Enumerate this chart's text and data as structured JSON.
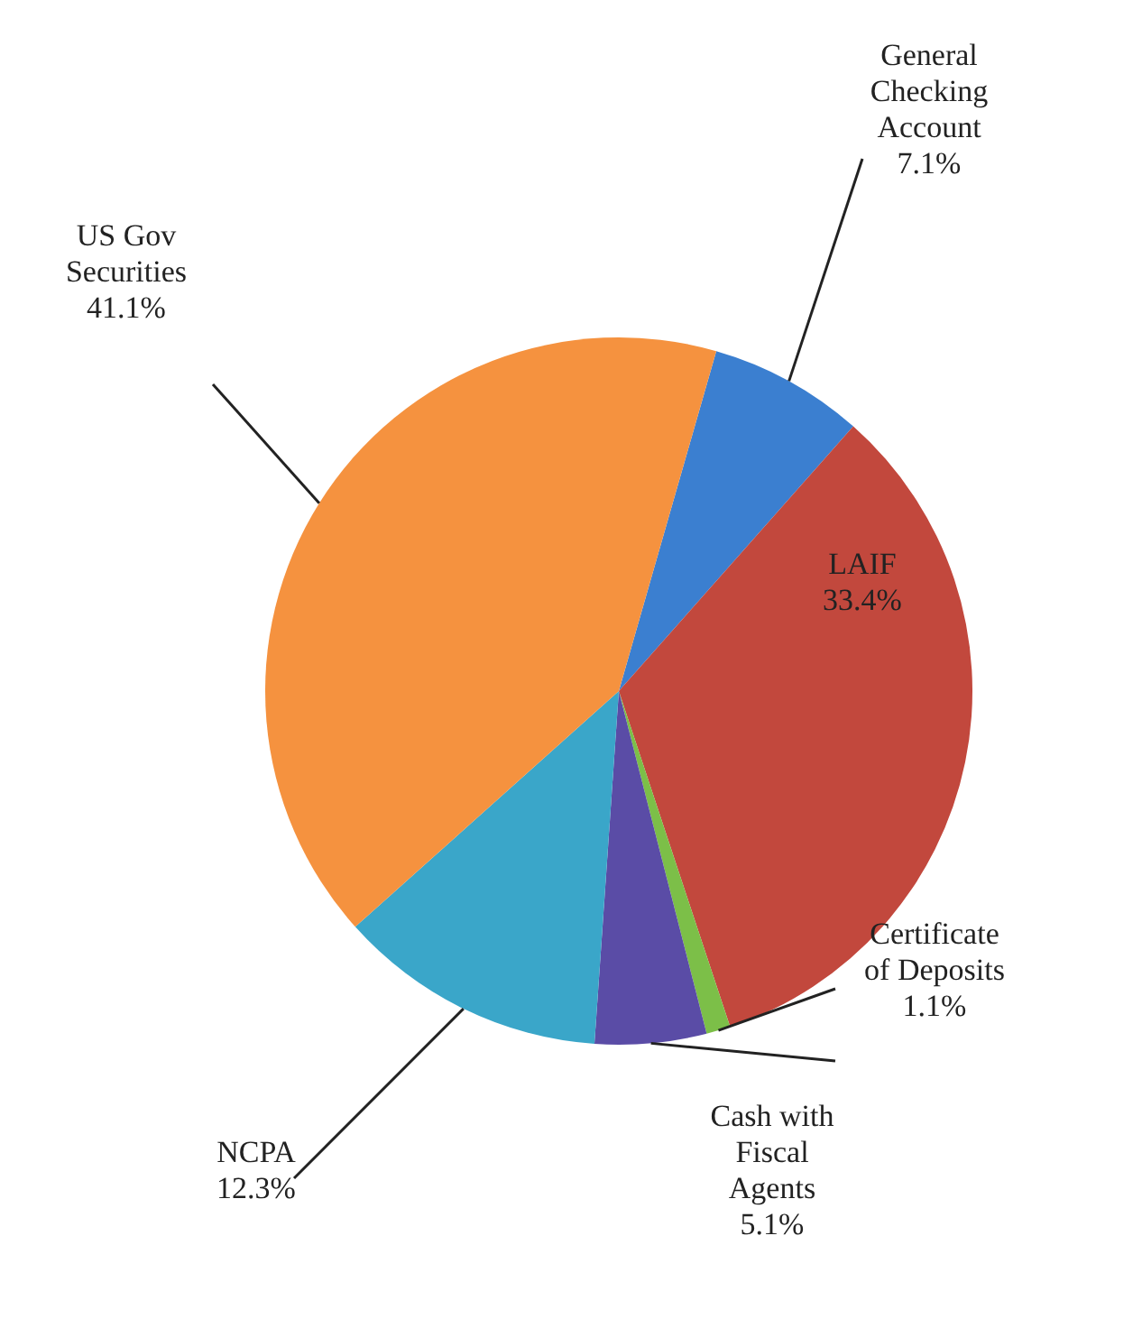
{
  "chart_data": {
    "type": "pie",
    "categories": [
      "General Checking Account",
      "LAIF",
      "Certificate of Deposits",
      "Cash with Fiscal Agents",
      "NCPA",
      "US Gov Securities"
    ],
    "values": [
      7.1,
      33.4,
      1.1,
      5.1,
      12.3,
      41.1
    ],
    "value_labels": [
      "7.1%",
      "33.4%",
      "1.1%",
      "5.1%",
      "12.3%",
      "41.1%"
    ],
    "colors": [
      "#3b7fd0",
      "#c2483d",
      "#7cbf48",
      "#5a4ca6",
      "#3aa6c9",
      "#f5923f"
    ],
    "legend": false
  }
}
